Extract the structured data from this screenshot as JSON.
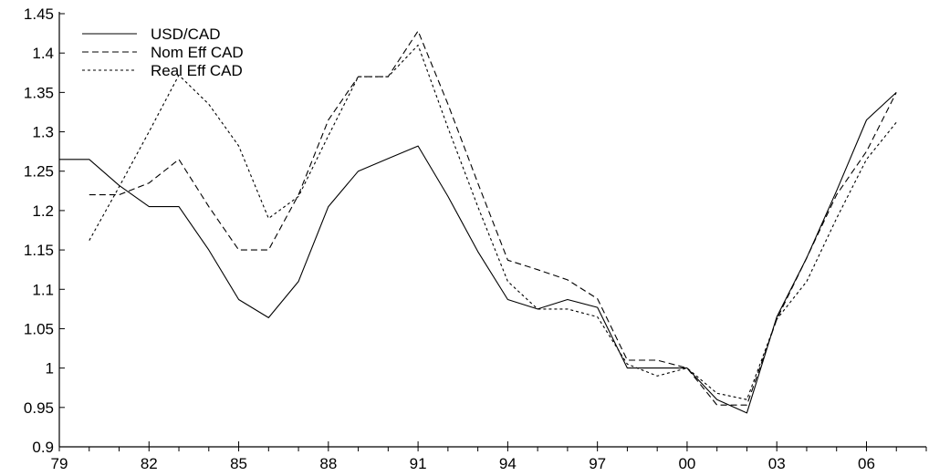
{
  "chart_data": {
    "type": "line",
    "title": "",
    "xlabel": "",
    "ylabel": "",
    "xlim": [
      1979,
      2008
    ],
    "ylim": [
      0.9,
      1.45
    ],
    "x_ticks": [
      {
        "value": 1979,
        "label": "79"
      },
      {
        "value": 1982,
        "label": "82"
      },
      {
        "value": 1985,
        "label": "85"
      },
      {
        "value": 1988,
        "label": "88"
      },
      {
        "value": 1991,
        "label": "91"
      },
      {
        "value": 1994,
        "label": "94"
      },
      {
        "value": 1997,
        "label": "97"
      },
      {
        "value": 2000,
        "label": "00"
      },
      {
        "value": 2003,
        "label": "03"
      },
      {
        "value": 2006,
        "label": "06"
      }
    ],
    "y_ticks": [
      {
        "value": 0.9,
        "label": "0.9"
      },
      {
        "value": 0.95,
        "label": "0.95"
      },
      {
        "value": 1.0,
        "label": "1"
      },
      {
        "value": 1.05,
        "label": "1.05"
      },
      {
        "value": 1.1,
        "label": "1.1"
      },
      {
        "value": 1.15,
        "label": "1.15"
      },
      {
        "value": 1.2,
        "label": "1.2"
      },
      {
        "value": 1.25,
        "label": "1.25"
      },
      {
        "value": 1.3,
        "label": "1.3"
      },
      {
        "value": 1.35,
        "label": "1.35"
      },
      {
        "value": 1.4,
        "label": "1.4"
      },
      {
        "value": 1.45,
        "label": "1.45"
      }
    ],
    "legend_position": "top-left",
    "grid": false,
    "series": [
      {
        "name": "USD/CAD",
        "dash": "solid",
        "x": [
          1979,
          1980,
          1981,
          1982,
          1983,
          1984,
          1985,
          1986,
          1987,
          1988,
          1989,
          1990,
          1991,
          1992,
          1993,
          1994,
          1995,
          1996,
          1997,
          1998,
          1999,
          2000,
          2001,
          2002,
          2003,
          2004,
          2005,
          2006,
          2007
        ],
        "values": [
          1.265,
          1.265,
          1.232,
          1.205,
          1.205,
          1.15,
          1.087,
          1.064,
          1.11,
          1.205,
          1.25,
          1.266,
          1.282,
          1.218,
          1.148,
          1.087,
          1.075,
          1.087,
          1.077,
          1.0,
          1.0,
          1.0,
          0.96,
          0.943,
          1.065,
          1.14,
          1.225,
          1.315,
          1.35
        ]
      },
      {
        "name": "Nom Eff CAD",
        "dash": "dashed",
        "x": [
          1980,
          1981,
          1982,
          1983,
          1984,
          1985,
          1986,
          1987,
          1988,
          1989,
          1990,
          1991,
          1992,
          1993,
          1994,
          1995,
          1996,
          1997,
          1998,
          1999,
          2000,
          2001,
          2002,
          2003,
          2004,
          2005,
          2006,
          2007
        ],
        "values": [
          1.22,
          1.22,
          1.235,
          1.265,
          1.205,
          1.15,
          1.15,
          1.22,
          1.315,
          1.37,
          1.37,
          1.428,
          1.335,
          1.235,
          1.137,
          1.125,
          1.112,
          1.088,
          1.01,
          1.01,
          1.0,
          0.953,
          0.953,
          1.062,
          1.14,
          1.22,
          1.275,
          1.35
        ]
      },
      {
        "name": "Real Eff CAD",
        "dash": "dotted",
        "x": [
          1980,
          1981,
          1982,
          1983,
          1984,
          1985,
          1986,
          1987,
          1988,
          1989,
          1990,
          1991,
          1992,
          1993,
          1994,
          1995,
          1996,
          1997,
          1998,
          1999,
          2000,
          2001,
          2002,
          2003,
          2004,
          2005,
          2006,
          2007
        ],
        "values": [
          1.162,
          1.23,
          1.3,
          1.372,
          1.335,
          1.282,
          1.19,
          1.218,
          1.295,
          1.37,
          1.37,
          1.41,
          1.305,
          1.205,
          1.11,
          1.075,
          1.075,
          1.065,
          1.005,
          0.99,
          1.0,
          0.968,
          0.96,
          1.062,
          1.11,
          1.19,
          1.265,
          1.312
        ]
      }
    ]
  }
}
